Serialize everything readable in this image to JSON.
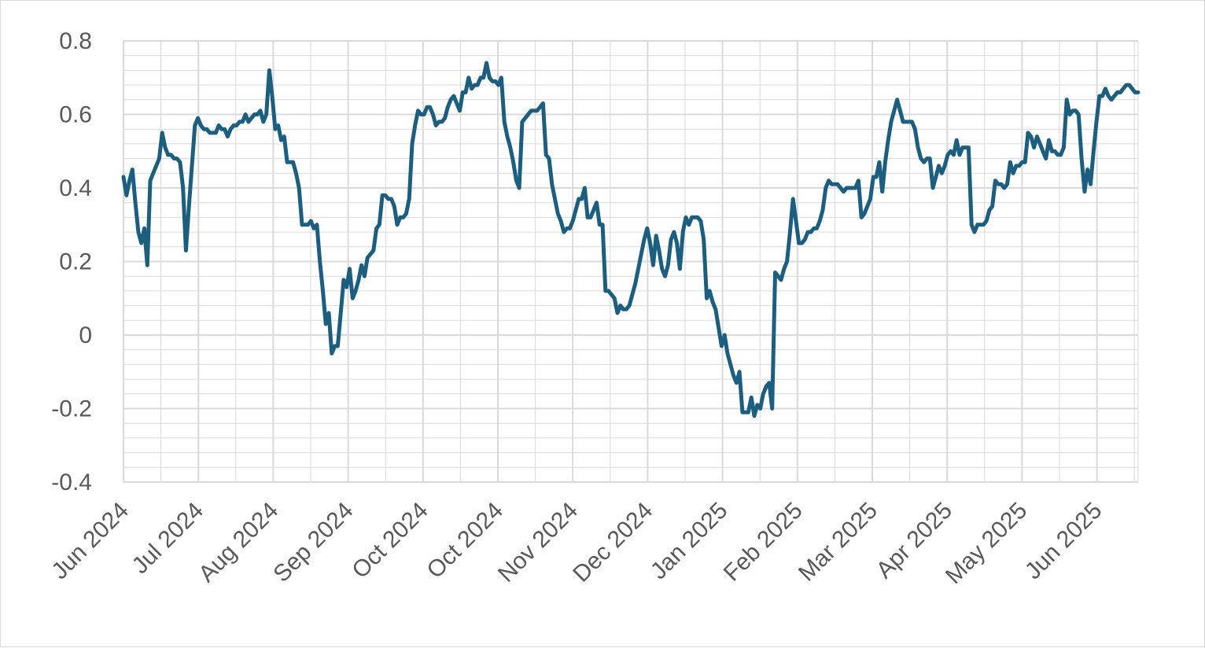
{
  "chart_data": {
    "type": "line",
    "title": "",
    "xlabel": "",
    "ylabel": "",
    "ylim": [
      -0.4,
      0.8
    ],
    "y_ticks": [
      -0.4,
      -0.2,
      0,
      0.2,
      0.4,
      0.6,
      0.8
    ],
    "y_tick_labels": [
      "-0.4",
      "-0.2",
      "0",
      "0.2",
      "0.4",
      "0.6",
      "0.8"
    ],
    "x_tick_labels": [
      "Jun 2024",
      "Jul 2024",
      "Aug 2024",
      "Sep 2024",
      "Oct 2024",
      "Oct 2024",
      "Nov 2024",
      "Dec 2024",
      "Jan 2025",
      "Feb 2025",
      "Mar 2025",
      "Apr 2025",
      "May 2025",
      "Jun 2025"
    ],
    "grid": true,
    "legend": "none",
    "line_color": "#1b5e80",
    "grid_color": "#d9d9d9",
    "series": [
      {
        "values": [
          0.43,
          0.38,
          0.42,
          0.45,
          0.36,
          0.28,
          0.25,
          0.29,
          0.19,
          0.42,
          0.44,
          0.46,
          0.48,
          0.55,
          0.51,
          0.49,
          0.49,
          0.48,
          0.48,
          0.47,
          0.4,
          0.23,
          0.35,
          0.46,
          0.57,
          0.59,
          0.57,
          0.56,
          0.56,
          0.55,
          0.55,
          0.55,
          0.57,
          0.56,
          0.56,
          0.54,
          0.56,
          0.57,
          0.57,
          0.58,
          0.58,
          0.6,
          0.58,
          0.59,
          0.6,
          0.6,
          0.61,
          0.58,
          0.6,
          0.72,
          0.65,
          0.56,
          0.57,
          0.53,
          0.54,
          0.47,
          0.47,
          0.47,
          0.44,
          0.4,
          0.3,
          0.3,
          0.3,
          0.31,
          0.29,
          0.3,
          0.2,
          0.12,
          0.03,
          0.06,
          -0.05,
          -0.03,
          -0.03,
          0.06,
          0.15,
          0.13,
          0.18,
          0.1,
          0.12,
          0.15,
          0.19,
          0.16,
          0.21,
          0.22,
          0.23,
          0.29,
          0.3,
          0.38,
          0.38,
          0.37,
          0.37,
          0.35,
          0.3,
          0.32,
          0.32,
          0.33,
          0.37,
          0.52,
          0.57,
          0.61,
          0.6,
          0.6,
          0.62,
          0.62,
          0.6,
          0.57,
          0.58,
          0.58,
          0.59,
          0.62,
          0.64,
          0.65,
          0.63,
          0.61,
          0.66,
          0.66,
          0.7,
          0.67,
          0.68,
          0.68,
          0.7,
          0.7,
          0.74,
          0.7,
          0.69,
          0.69,
          0.68,
          0.7,
          0.58,
          0.54,
          0.51,
          0.47,
          0.42,
          0.4,
          0.58,
          0.59,
          0.6,
          0.61,
          0.61,
          0.61,
          0.62,
          0.63,
          0.49,
          0.48,
          0.41,
          0.37,
          0.33,
          0.31,
          0.28,
          0.29,
          0.29,
          0.31,
          0.34,
          0.37,
          0.37,
          0.4,
          0.32,
          0.32,
          0.34,
          0.36,
          0.3,
          0.3,
          0.12,
          0.12,
          0.11,
          0.1,
          0.06,
          0.08,
          0.07,
          0.07,
          0.08,
          0.11,
          0.14,
          0.18,
          0.22,
          0.26,
          0.29,
          0.25,
          0.19,
          0.27,
          0.23,
          0.18,
          0.16,
          0.19,
          0.26,
          0.28,
          0.25,
          0.18,
          0.28,
          0.32,
          0.3,
          0.32,
          0.32,
          0.32,
          0.31,
          0.26,
          0.1,
          0.12,
          0.09,
          0.07,
          0.02,
          -0.03,
          0.0,
          -0.05,
          -0.08,
          -0.11,
          -0.13,
          -0.1,
          -0.21,
          -0.21,
          -0.21,
          -0.17,
          -0.22,
          -0.19,
          -0.2,
          -0.16,
          -0.14,
          -0.13,
          -0.2,
          0.17,
          0.16,
          0.15,
          0.18,
          0.2,
          0.28,
          0.37,
          0.31,
          0.25,
          0.25,
          0.26,
          0.28,
          0.28,
          0.29,
          0.29,
          0.31,
          0.34,
          0.4,
          0.42,
          0.41,
          0.41,
          0.41,
          0.4,
          0.39,
          0.4,
          0.4,
          0.4,
          0.4,
          0.42,
          0.32,
          0.33,
          0.35,
          0.37,
          0.43,
          0.43,
          0.47,
          0.39,
          0.47,
          0.53,
          0.58,
          0.61,
          0.64,
          0.61,
          0.58,
          0.58,
          0.58,
          0.58,
          0.56,
          0.51,
          0.48,
          0.47,
          0.48,
          0.48,
          0.4,
          0.43,
          0.46,
          0.44,
          0.46,
          0.49,
          0.5,
          0.49,
          0.53,
          0.49,
          0.51,
          0.51,
          0.51,
          0.3,
          0.28,
          0.3,
          0.3,
          0.3,
          0.31,
          0.34,
          0.35,
          0.42,
          0.41,
          0.41,
          0.4,
          0.41,
          0.47,
          0.44,
          0.46,
          0.46,
          0.47,
          0.47,
          0.55,
          0.54,
          0.51,
          0.54,
          0.52,
          0.5,
          0.48,
          0.53,
          0.5,
          0.5,
          0.49,
          0.49,
          0.51,
          0.64,
          0.6,
          0.61,
          0.61,
          0.6,
          0.48,
          0.39,
          0.45,
          0.41,
          0.5,
          0.58,
          0.65,
          0.65,
          0.67,
          0.65,
          0.64,
          0.65,
          0.66,
          0.66,
          0.67,
          0.68,
          0.68,
          0.67,
          0.66,
          0.66
        ]
      }
    ]
  }
}
